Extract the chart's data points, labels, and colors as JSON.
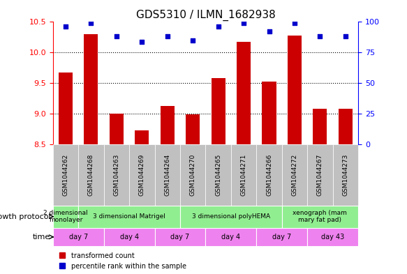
{
  "title": "GDS5310 / ILMN_1682938",
  "samples": [
    "GSM1044262",
    "GSM1044268",
    "GSM1044263",
    "GSM1044269",
    "GSM1044264",
    "GSM1044270",
    "GSM1044265",
    "GSM1044271",
    "GSM1044266",
    "GSM1044272",
    "GSM1044267",
    "GSM1044273"
  ],
  "bar_values": [
    9.67,
    10.3,
    9.0,
    8.73,
    9.12,
    8.99,
    9.58,
    10.18,
    9.52,
    10.28,
    9.08,
    9.08
  ],
  "dot_values": [
    96,
    99,
    88,
    84,
    88,
    85,
    96,
    99,
    92,
    99,
    88,
    88
  ],
  "bar_bottom": 8.5,
  "ylim_left": [
    8.5,
    10.5
  ],
  "ylim_right": [
    0,
    100
  ],
  "yticks_left": [
    8.5,
    9.0,
    9.5,
    10.0,
    10.5
  ],
  "yticks_right": [
    0,
    25,
    50,
    75,
    100
  ],
  "bar_color": "#cc0000",
  "dot_color": "#0000cc",
  "grid_color": "#000000",
  "growth_protocol_groups": [
    {
      "label": "2 dimensional\nmonolayer",
      "start": 0,
      "end": 1,
      "color": "#90ee90"
    },
    {
      "label": "3 dimensional Matrigel",
      "start": 1,
      "end": 5,
      "color": "#90ee90"
    },
    {
      "label": "3 dimensional polyHEMA",
      "start": 5,
      "end": 9,
      "color": "#90ee90"
    },
    {
      "label": "xenograph (mam\nmary fat pad)",
      "start": 9,
      "end": 12,
      "color": "#90ee90"
    }
  ],
  "time_groups": [
    {
      "label": "day 7",
      "start": 0,
      "end": 2,
      "color": "#ee82ee"
    },
    {
      "label": "day 4",
      "start": 2,
      "end": 4,
      "color": "#ee82ee"
    },
    {
      "label": "day 7",
      "start": 4,
      "end": 6,
      "color": "#ee82ee"
    },
    {
      "label": "day 4",
      "start": 6,
      "end": 8,
      "color": "#ee82ee"
    },
    {
      "label": "day 7",
      "start": 8,
      "end": 10,
      "color": "#ee82ee"
    },
    {
      "label": "day 43",
      "start": 10,
      "end": 12,
      "color": "#ee82ee"
    }
  ],
  "sample_bg_color": "#c0c0c0",
  "row_label_growth": "growth protocol",
  "row_label_time": "time",
  "legend_items": [
    {
      "label": "transformed count",
      "color": "#cc0000"
    },
    {
      "label": "percentile rank within the sample",
      "color": "#0000cc"
    }
  ]
}
